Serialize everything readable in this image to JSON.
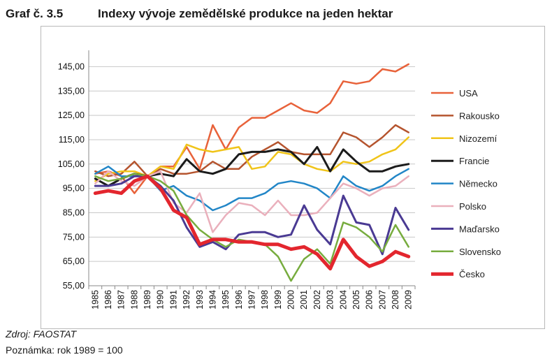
{
  "header": {
    "graf_label": "Graf č. 3.5",
    "title": "Indexy vývoje zemědělské produkce na jeden hektar"
  },
  "footer": {
    "source": "Zdroj: FAOSTAT",
    "note": "Poznámka: rok 1989 = 100"
  },
  "chart_data": {
    "type": "line",
    "title": "Indexy vývoje zemědělské produkce na jeden hektar",
    "xlabel": "",
    "ylabel": "",
    "x": [
      "1985",
      "1986",
      "1987",
      "1988",
      "1989",
      "1990",
      "1991",
      "1992",
      "1993",
      "1994",
      "1995",
      "1996",
      "1997",
      "1998",
      "1999",
      "2000",
      "2001",
      "2002",
      "2003",
      "2004",
      "2005",
      "2006",
      "2007",
      "2008",
      "2009"
    ],
    "ylim": [
      55,
      150
    ],
    "yticks": [
      "55,00",
      "65,00",
      "75,00",
      "85,00",
      "95,00",
      "105,00",
      "115,00",
      "125,00",
      "135,00",
      "145,00"
    ],
    "ytick_values": [
      55,
      65,
      75,
      85,
      95,
      105,
      115,
      125,
      135,
      145
    ],
    "grid": true,
    "legend_position": "right",
    "series": [
      {
        "name": "USA",
        "color": "#e8623a",
        "width": 2.5,
        "values": [
          101,
          102,
          100,
          93,
          100,
          104,
          104,
          112,
          103,
          121,
          111,
          120,
          124,
          124,
          127,
          130,
          127,
          126,
          130,
          139,
          138,
          139,
          144,
          143,
          146
        ]
      },
      {
        "name": "Rakousko",
        "color": "#b5542e",
        "width": 2.5,
        "values": [
          102,
          100,
          101,
          106,
          100,
          103,
          101,
          101,
          102,
          106,
          103,
          103,
          108,
          111,
          114,
          110,
          109,
          109,
          109,
          118,
          116,
          112,
          116,
          121,
          118
        ]
      },
      {
        "name": "Nizozemí",
        "color": "#f0c419",
        "width": 2.5,
        "values": [
          98,
          101,
          102,
          102,
          100,
          104,
          103,
          113,
          111,
          110,
          111,
          112,
          103,
          104,
          110,
          109,
          105,
          103,
          102,
          106,
          105,
          106,
          109,
          111,
          116
        ]
      },
      {
        "name": "Francie",
        "color": "#1b1b1b",
        "width": 3,
        "values": [
          99,
          96,
          99,
          101,
          100,
          101,
          100,
          107,
          102,
          101,
          103,
          109,
          110,
          110,
          111,
          110,
          105,
          112,
          102,
          111,
          106,
          102,
          102,
          104,
          105
        ]
      },
      {
        "name": "Německo",
        "color": "#2286c7",
        "width": 2.5,
        "values": [
          101,
          104,
          100,
          100,
          100,
          94,
          96,
          92,
          90,
          86,
          88,
          91,
          91,
          93,
          97,
          98,
          97,
          95,
          91,
          100,
          96,
          94,
          96,
          100,
          103
        ]
      },
      {
        "name": "Polsko",
        "color": "#eab0bc",
        "width": 2.5,
        "values": [
          97,
          102,
          98,
          96,
          100,
          102,
          89,
          85,
          93,
          77,
          84,
          89,
          88,
          84,
          90,
          84,
          84,
          85,
          91,
          97,
          95,
          92,
          95,
          96,
          100
        ]
      },
      {
        "name": "Maďarsko",
        "color": "#4a3a93",
        "width": 3,
        "values": [
          96,
          96,
          97,
          100,
          100,
          96,
          90,
          79,
          71,
          73,
          70,
          76,
          77,
          77,
          75,
          76,
          88,
          78,
          72,
          92,
          81,
          80,
          68,
          87,
          78
        ]
      },
      {
        "name": "Slovensko",
        "color": "#77ac3e",
        "width": 2.5,
        "values": [
          100,
          98,
          99,
          101,
          100,
          98,
          94,
          84,
          78,
          74,
          71,
          74,
          73,
          72,
          67,
          57,
          66,
          70,
          64,
          81,
          79,
          75,
          69,
          80,
          71
        ]
      },
      {
        "name": "Česko",
        "color": "#e3262e",
        "width": 5,
        "values": [
          93,
          94,
          93,
          98,
          100,
          95,
          86,
          83,
          72,
          74,
          74,
          73,
          73,
          72,
          72,
          70,
          71,
          68,
          62,
          74,
          67,
          63,
          65,
          69,
          67
        ]
      }
    ]
  }
}
